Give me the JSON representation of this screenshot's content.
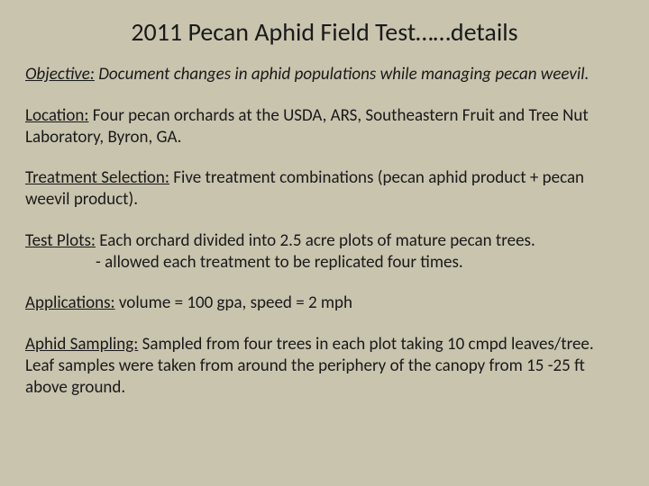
{
  "slide": {
    "background_color": "#c9c4ae",
    "text_color": "#1a1a1a",
    "title": "2011 Pecan Aphid Field Test……details",
    "title_fontsize": 28,
    "body_fontsize": 19,
    "sections": {
      "objective": {
        "label": "Objective:",
        "text": "Document changes in aphid populations while managing pecan weevil.",
        "italic": true
      },
      "location": {
        "label": "Location:",
        "text": "Four pecan orchards at the USDA, ARS, Southeastern Fruit and Tree Nut Laboratory, Byron, GA."
      },
      "treatment": {
        "label": "Treatment Selection:",
        "text": "Five treatment combinations (pecan aphid product + pecan weevil product)."
      },
      "testplots": {
        "label": "Test Plots:",
        "text": "Each orchard divided into 2.5 acre plots of mature pecan trees.",
        "sub": "- allowed each treatment to be replicated four times."
      },
      "applications": {
        "label": "Applications:",
        "text": "volume = 100 gpa, speed = 2 mph"
      },
      "sampling": {
        "label": "Aphid Sampling:",
        "text": "Sampled from four trees in each plot taking 10 cmpd leaves/tree.  Leaf samples were taken from around the periphery of the canopy from 15 -25 ft above ground."
      }
    }
  }
}
